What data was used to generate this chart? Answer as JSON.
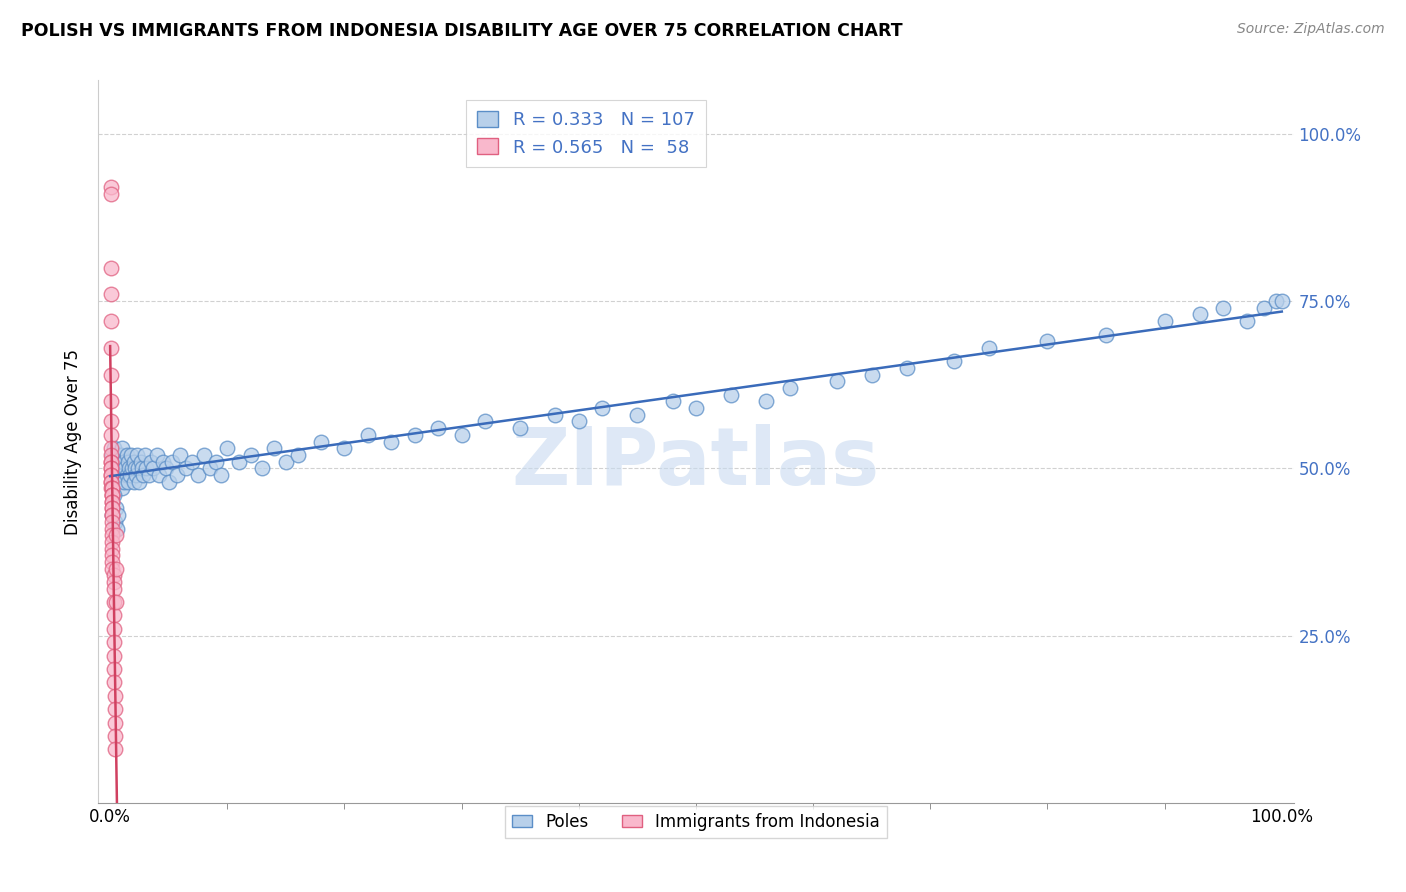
{
  "title": "POLISH VS IMMIGRANTS FROM INDONESIA DISABILITY AGE OVER 75 CORRELATION CHART",
  "source": "Source: ZipAtlas.com",
  "ylabel": "Disability Age Over 75",
  "legend_entries": [
    "Poles",
    "Immigrants from Indonesia"
  ],
  "blue_R": 0.333,
  "blue_N": 107,
  "pink_R": 0.565,
  "pink_N": 58,
  "blue_fill_color": "#b8d0ea",
  "blue_edge_color": "#5b8ec7",
  "pink_fill_color": "#f9b8cc",
  "pink_edge_color": "#e06080",
  "blue_line_color": "#3a6bba",
  "pink_line_color": "#d04060",
  "label_color": "#4472c4",
  "watermark_color": "#c8daf0",
  "watermark_text": "ZIPatlas",
  "blue_x": [
    0.002,
    0.003,
    0.003,
    0.004,
    0.004,
    0.005,
    0.005,
    0.005,
    0.006,
    0.006,
    0.007,
    0.007,
    0.008,
    0.008,
    0.009,
    0.009,
    0.01,
    0.01,
    0.01,
    0.011,
    0.011,
    0.012,
    0.012,
    0.013,
    0.014,
    0.014,
    0.015,
    0.015,
    0.016,
    0.017,
    0.018,
    0.019,
    0.02,
    0.02,
    0.021,
    0.022,
    0.023,
    0.024,
    0.025,
    0.026,
    0.027,
    0.028,
    0.03,
    0.031,
    0.033,
    0.035,
    0.037,
    0.04,
    0.042,
    0.045,
    0.048,
    0.05,
    0.053,
    0.057,
    0.06,
    0.065,
    0.07,
    0.075,
    0.08,
    0.085,
    0.09,
    0.095,
    0.1,
    0.11,
    0.12,
    0.13,
    0.14,
    0.15,
    0.16,
    0.18,
    0.2,
    0.22,
    0.24,
    0.26,
    0.28,
    0.3,
    0.32,
    0.35,
    0.38,
    0.4,
    0.42,
    0.45,
    0.48,
    0.5,
    0.53,
    0.56,
    0.58,
    0.62,
    0.65,
    0.68,
    0.72,
    0.75,
    0.8,
    0.85,
    0.9,
    0.93,
    0.95,
    0.97,
    0.985,
    0.995,
    1.0,
    0.002,
    0.003,
    0.004,
    0.005,
    0.006,
    0.007
  ],
  "blue_y": [
    0.52,
    0.5,
    0.53,
    0.48,
    0.51,
    0.5,
    0.52,
    0.49,
    0.51,
    0.5,
    0.49,
    0.52,
    0.48,
    0.51,
    0.5,
    0.52,
    0.47,
    0.5,
    0.53,
    0.49,
    0.51,
    0.48,
    0.51,
    0.5,
    0.49,
    0.52,
    0.48,
    0.51,
    0.5,
    0.49,
    0.52,
    0.5,
    0.48,
    0.51,
    0.5,
    0.49,
    0.52,
    0.5,
    0.48,
    0.51,
    0.5,
    0.49,
    0.52,
    0.5,
    0.49,
    0.51,
    0.5,
    0.52,
    0.49,
    0.51,
    0.5,
    0.48,
    0.51,
    0.49,
    0.52,
    0.5,
    0.51,
    0.49,
    0.52,
    0.5,
    0.51,
    0.49,
    0.53,
    0.51,
    0.52,
    0.5,
    0.53,
    0.51,
    0.52,
    0.54,
    0.53,
    0.55,
    0.54,
    0.55,
    0.56,
    0.55,
    0.57,
    0.56,
    0.58,
    0.57,
    0.59,
    0.58,
    0.6,
    0.59,
    0.61,
    0.6,
    0.62,
    0.63,
    0.64,
    0.65,
    0.66,
    0.68,
    0.69,
    0.7,
    0.72,
    0.73,
    0.74,
    0.72,
    0.74,
    0.75,
    0.75,
    0.43,
    0.46,
    0.42,
    0.44,
    0.41,
    0.43
  ],
  "pink_x": [
    0.001,
    0.001,
    0.001,
    0.001,
    0.001,
    0.001,
    0.001,
    0.001,
    0.001,
    0.001,
    0.001,
    0.001,
    0.001,
    0.001,
    0.001,
    0.001,
    0.001,
    0.001,
    0.001,
    0.001,
    0.001,
    0.002,
    0.002,
    0.002,
    0.002,
    0.002,
    0.002,
    0.002,
    0.002,
    0.002,
    0.002,
    0.002,
    0.002,
    0.002,
    0.002,
    0.002,
    0.002,
    0.002,
    0.002,
    0.002,
    0.003,
    0.003,
    0.003,
    0.003,
    0.003,
    0.003,
    0.003,
    0.003,
    0.003,
    0.003,
    0.004,
    0.004,
    0.004,
    0.004,
    0.004,
    0.005,
    0.005,
    0.005
  ],
  "pink_y": [
    0.92,
    0.91,
    0.8,
    0.76,
    0.72,
    0.68,
    0.64,
    0.6,
    0.57,
    0.55,
    0.53,
    0.52,
    0.51,
    0.51,
    0.5,
    0.5,
    0.49,
    0.49,
    0.48,
    0.48,
    0.47,
    0.47,
    0.47,
    0.46,
    0.46,
    0.46,
    0.45,
    0.45,
    0.44,
    0.44,
    0.43,
    0.43,
    0.42,
    0.41,
    0.4,
    0.39,
    0.38,
    0.37,
    0.36,
    0.35,
    0.34,
    0.33,
    0.32,
    0.3,
    0.28,
    0.26,
    0.24,
    0.22,
    0.2,
    0.18,
    0.16,
    0.14,
    0.12,
    0.1,
    0.08,
    0.3,
    0.35,
    0.4
  ]
}
